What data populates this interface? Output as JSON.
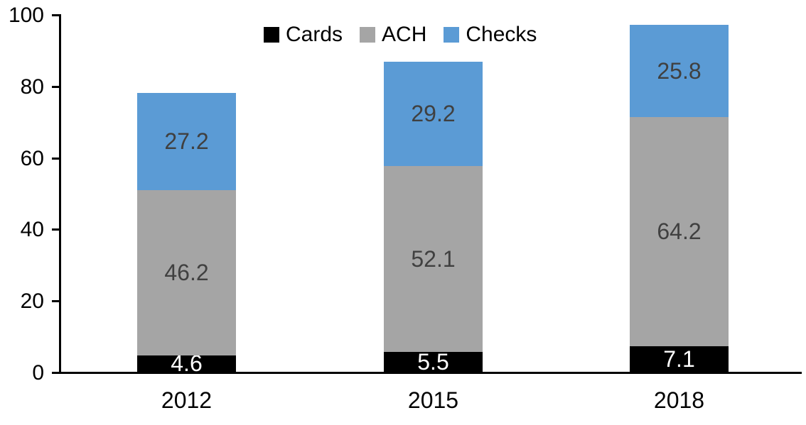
{
  "chart_data": {
    "type": "bar",
    "stacked": true,
    "title": "",
    "categories": [
      "2012",
      "2015",
      "2018"
    ],
    "series": [
      {
        "name": "Cards",
        "color": "#000000",
        "label_color": "#ffffff",
        "values": [
          4.6,
          5.5,
          7.1
        ]
      },
      {
        "name": "ACH",
        "color": "#A5A5A5",
        "label_color": "#404040",
        "values": [
          46.2,
          52.1,
          64.2
        ]
      },
      {
        "name": "Checks",
        "color": "#5B9BD5",
        "label_color": "#404040",
        "values": [
          27.2,
          29.2,
          25.8
        ]
      }
    ],
    "xlabel": "",
    "ylabel": "",
    "ylim": [
      0,
      100
    ],
    "yticks": [
      0,
      20,
      40,
      60,
      80,
      100
    ],
    "grid": false,
    "legend_position": "top",
    "axis_color": "#000000",
    "background_color": "#ffffff"
  }
}
